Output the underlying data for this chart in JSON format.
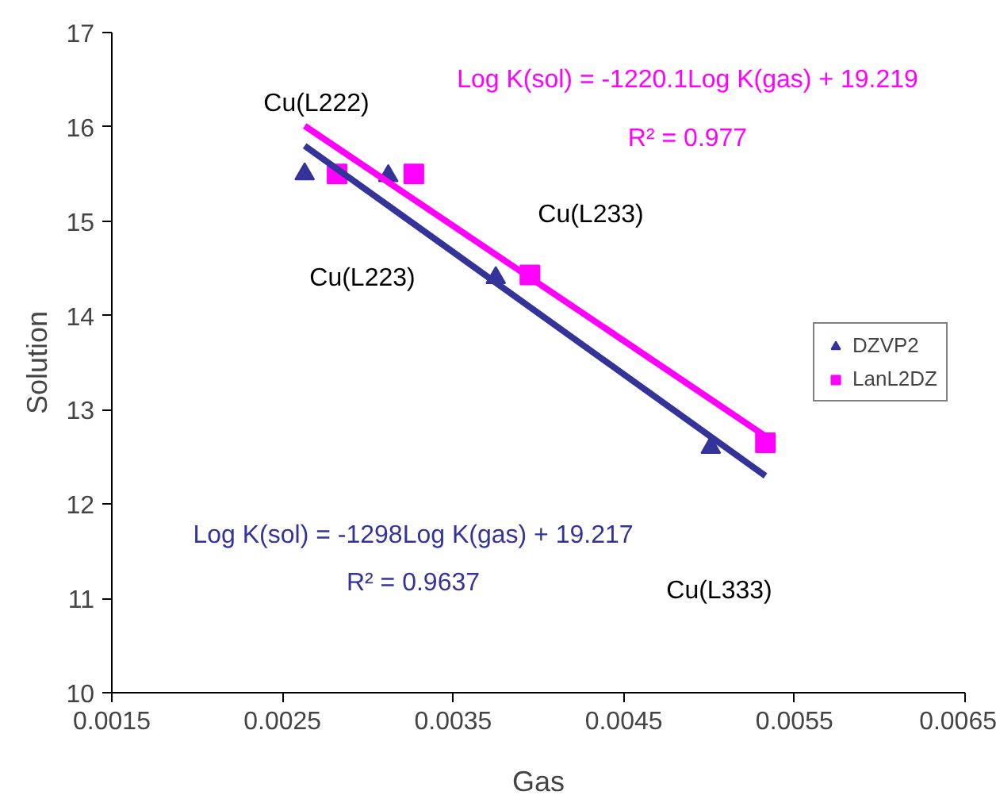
{
  "chart_data": {
    "type": "scatter",
    "xlabel": "Gas",
    "ylabel": "Solution",
    "xlim": [
      0.0015,
      0.0065
    ],
    "xticks": [
      0.0015,
      0.0025,
      0.0035,
      0.0045,
      0.0055,
      0.0065
    ],
    "ylim": [
      10,
      17
    ],
    "yticks": [
      10,
      11,
      12,
      13,
      14,
      15,
      16,
      17
    ],
    "grid": false,
    "legend": "right",
    "series": [
      {
        "name": "DZVP2",
        "color": "#333399",
        "marker": "triangle",
        "x": [
          0.00263,
          0.00312,
          0.00375,
          0.00501
        ],
        "values": [
          15.5,
          15.48,
          14.4,
          12.6
        ]
      },
      {
        "name": "LanL2DZ",
        "color": "#ff00ff",
        "marker": "square",
        "x": [
          0.00282,
          0.00327,
          0.00395,
          0.00533
        ],
        "values": [
          15.5,
          15.5,
          14.43,
          12.65
        ]
      },
      {
        "type": "line",
        "color": "#333399",
        "x": [
          0.00263,
          0.00533
        ],
        "values": [
          15.8,
          12.3
        ]
      },
      {
        "type": "line",
        "color": "#ff00ff",
        "x": [
          0.00263,
          0.00533
        ],
        "values": [
          16.01,
          12.72
        ]
      }
    ],
    "annotations": [
      "Log K(sol) = -1220.1Log K(gas) + 19.219",
      "R² = 0.977",
      "Log K(sol) = -1298Log K(gas) + 19.217",
      "R² = 0.9637",
      "Cu(L222)",
      "Cu(L223)",
      "Cu(L233)",
      "Cu(L333)"
    ]
  }
}
